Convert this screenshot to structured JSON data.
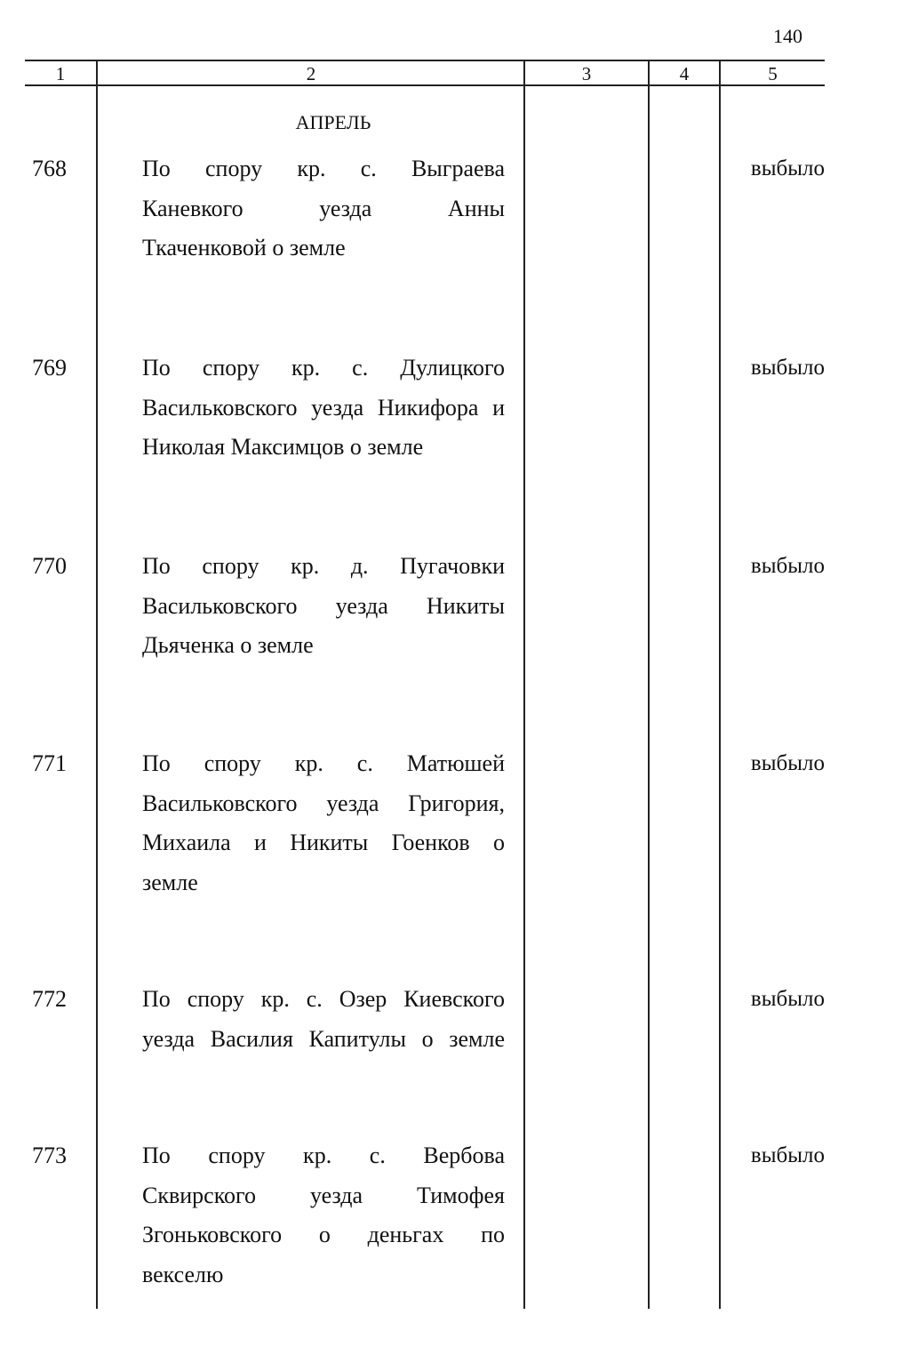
{
  "page_number": "140",
  "columns": [
    "1",
    "2",
    "3",
    "4",
    "5"
  ],
  "month": "АПРЕЛЬ",
  "entries": [
    {
      "number": "768",
      "lines": [
        "По спору кр. с. Выграева",
        "Каневкого уезда Анны",
        "Ткаченковой о земле"
      ],
      "status": "выбыло"
    },
    {
      "number": "769",
      "lines": [
        "По спору кр. с. Дулицкого",
        "Васильковского уезда Никифора и",
        "Николая Максимцов о земле"
      ],
      "status": "выбыло"
    },
    {
      "number": "770",
      "lines": [
        "По спору кр. д. Пугачовки",
        "Васильковского уезда Никиты",
        "Дьяченка о земле"
      ],
      "status": "выбыло"
    },
    {
      "number": "771",
      "lines": [
        "По спору кр. с. Матюшей",
        "Васильковского уезда Григория,",
        "Михаила и Никиты Гоенков о",
        "земле"
      ],
      "status": "выбыло"
    },
    {
      "number": "772",
      "lines": [
        "По спору кр. с. Озер Киевского",
        "уезда Василия Капитулы о земле"
      ],
      "status": "выбыло"
    },
    {
      "number": "773",
      "lines": [
        "По спору кр. с. Вербова",
        "Сквирского уезда Тимофея",
        "Згоньковского о деньгах по",
        "векселю"
      ],
      "status": "выбыло"
    }
  ]
}
